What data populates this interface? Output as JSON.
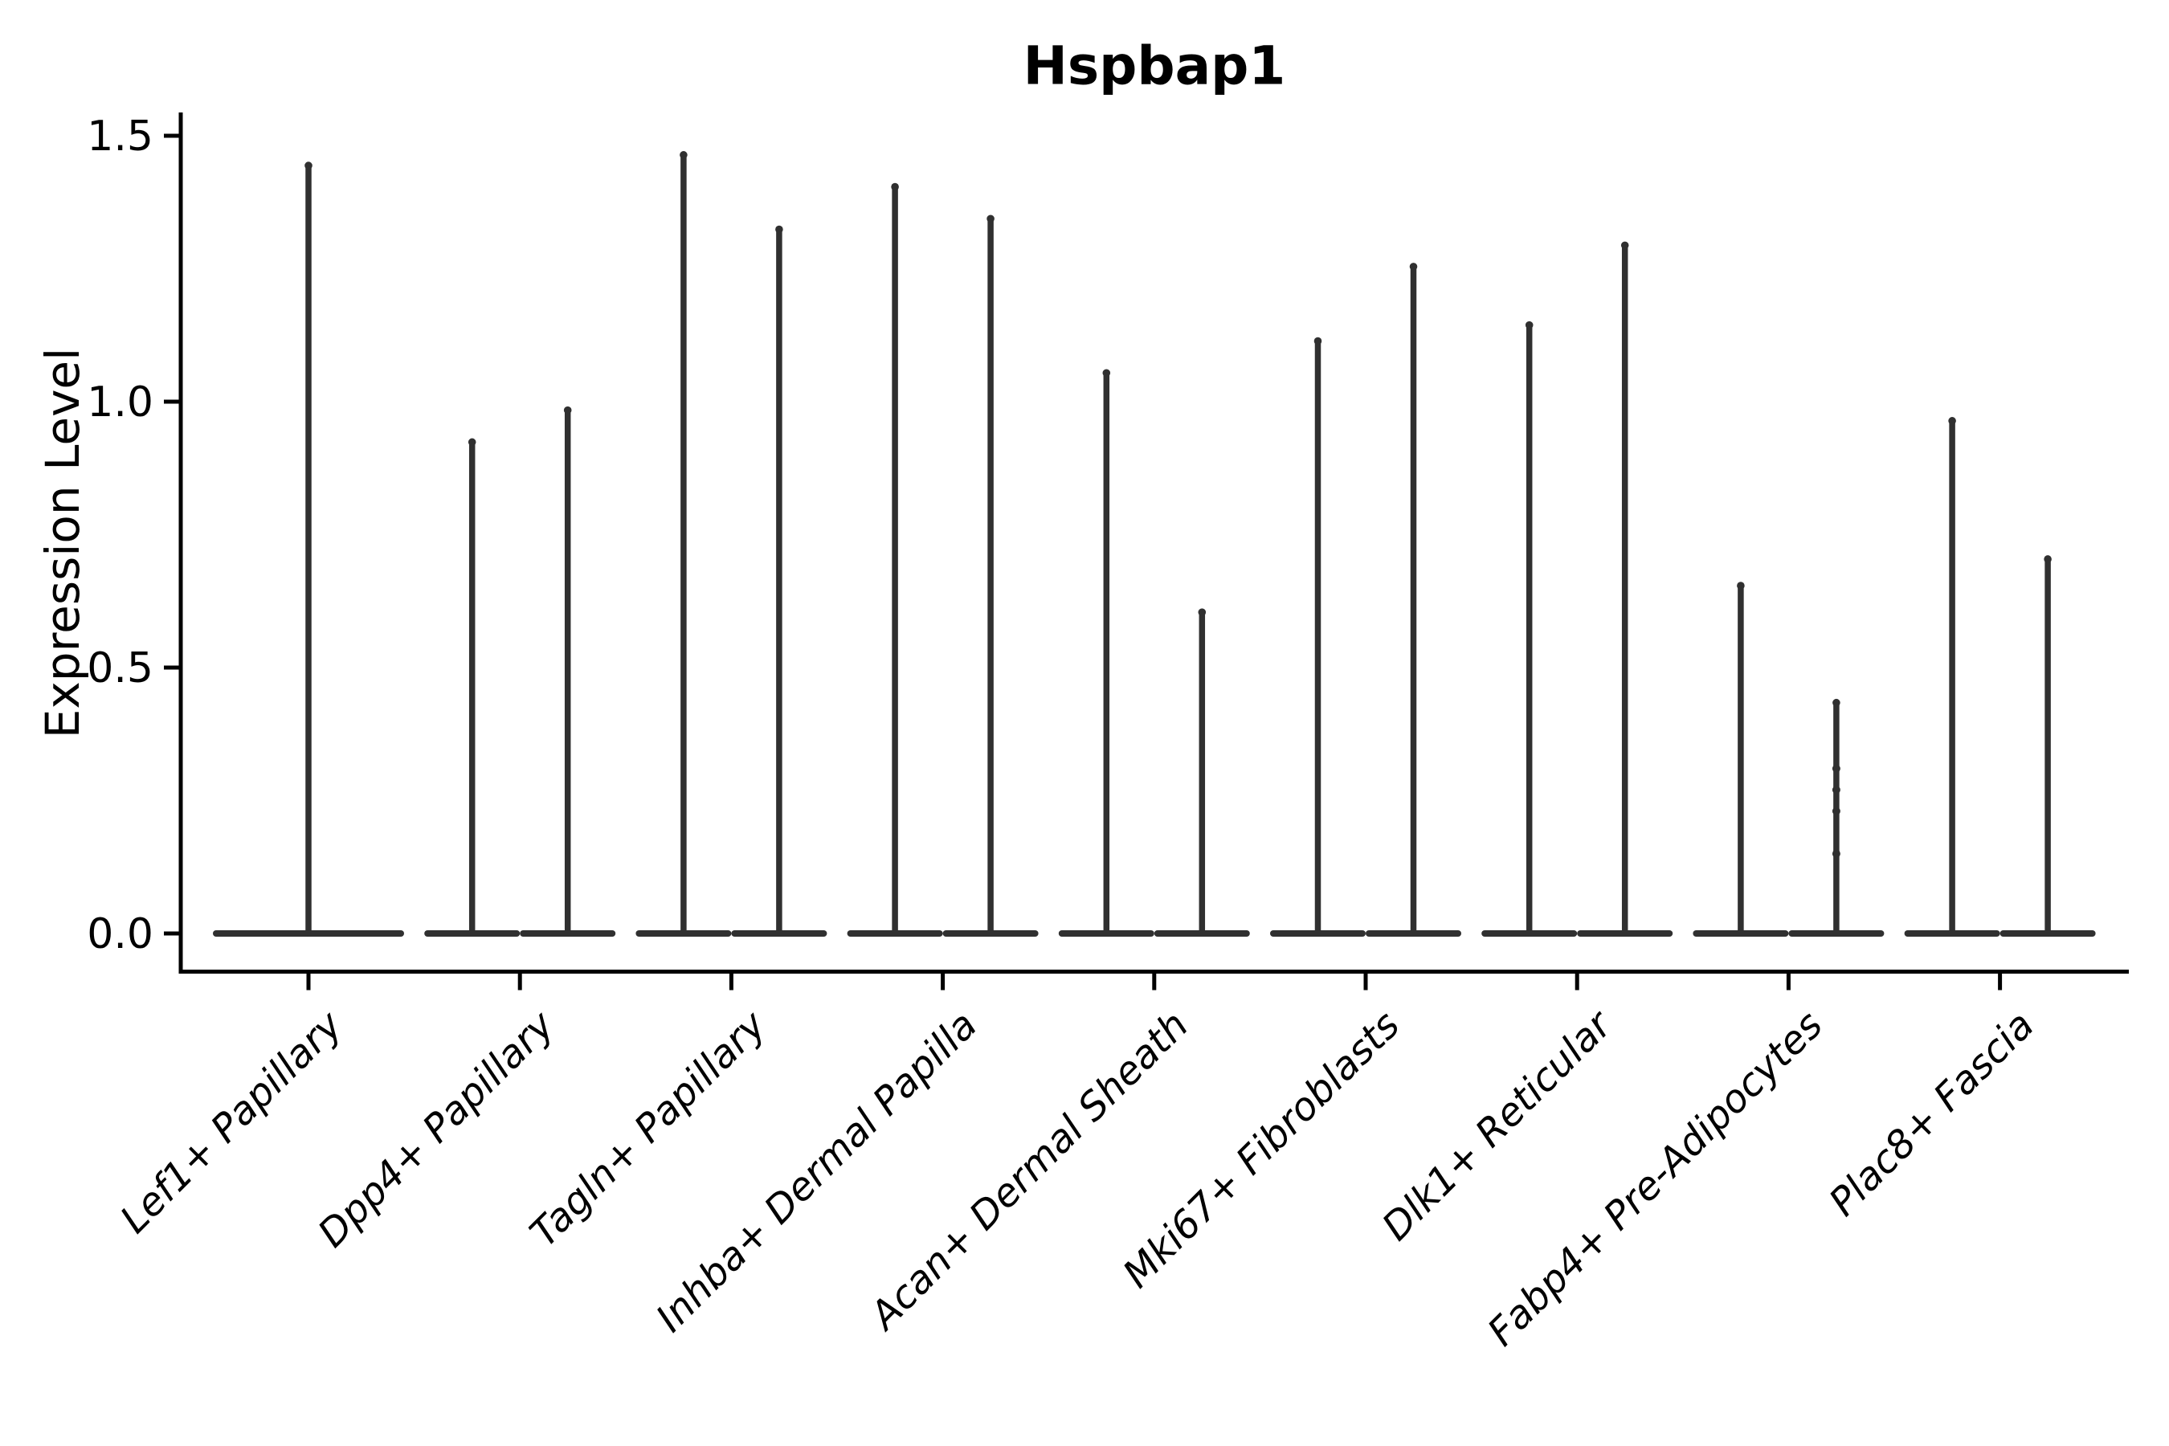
{
  "title": "Hspbap1",
  "colors": {
    "background": "#ffffff",
    "violin_ink": "#303030",
    "axis_ink": "#000000"
  },
  "chart_data": {
    "type": "violin",
    "title": "Hspbap1",
    "xlabel": "",
    "ylabel": "Expression Level",
    "ylim": [
      0,
      1.5
    ],
    "yticks": [
      "0.0",
      "0.5",
      "1.0",
      "1.5"
    ],
    "ytick_values": [
      0.0,
      0.5,
      1.0,
      1.5
    ],
    "grid": false,
    "legend": "none",
    "description": "Single-cell expression violin plot; each violin is a thin spike: dense mass at 0 with a narrow tail up to the max expression value.",
    "categories": [
      "Lef1+ Papillary",
      "Dpp4+ Papillary",
      "Tagln+ Papillary",
      "Inhba+ Dermal Papilla",
      "Acan+ Dermal Sheath",
      "Mki67+ Fibroblasts",
      "Dlk1+ Reticular",
      "Fabp4+ Pre-Adipocytes",
      "Plac8+ Fascia"
    ],
    "groups": [
      {
        "category": "Lef1+ Papillary",
        "violins": [
          {
            "max": 1.45,
            "points": []
          }
        ]
      },
      {
        "category": "Dpp4+ Papillary",
        "violins": [
          {
            "max": 0.93,
            "points": []
          },
          {
            "max": 0.99,
            "points": []
          }
        ]
      },
      {
        "category": "Tagln+ Papillary",
        "violins": [
          {
            "max": 1.47,
            "points": []
          },
          {
            "max": 1.33,
            "points": []
          }
        ]
      },
      {
        "category": "Inhba+ Dermal Papilla",
        "violins": [
          {
            "max": 1.41,
            "points": []
          },
          {
            "max": 1.35,
            "points": []
          }
        ]
      },
      {
        "category": "Acan+ Dermal Sheath",
        "violins": [
          {
            "max": 1.06,
            "points": []
          },
          {
            "max": 0.61,
            "points": []
          }
        ]
      },
      {
        "category": "Mki67+ Fibroblasts",
        "violins": [
          {
            "max": 1.12,
            "points": []
          },
          {
            "max": 1.26,
            "points": []
          }
        ]
      },
      {
        "category": "Dlk1+ Reticular",
        "violins": [
          {
            "max": 1.15,
            "points": []
          },
          {
            "max": 1.3,
            "points": []
          }
        ]
      },
      {
        "category": "Fabp4+ Pre-Adipocytes",
        "violins": [
          {
            "max": 0.66,
            "points": []
          },
          {
            "max": 0.44,
            "points": [
              0.31,
              0.27,
              0.23,
              0.15
            ]
          }
        ]
      },
      {
        "category": "Plac8+ Fascia",
        "violins": [
          {
            "max": 0.97,
            "points": []
          },
          {
            "max": 0.71,
            "points": []
          }
        ]
      }
    ]
  }
}
